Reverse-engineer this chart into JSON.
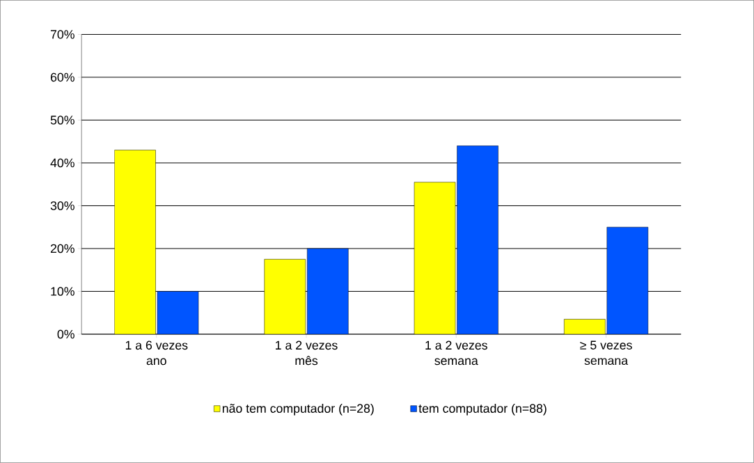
{
  "chart_data": {
    "type": "bar",
    "categories": [
      "1 a 6 vezes\nano",
      "1 a 2 vezes\nmês",
      "1 a 2 vezes\nsemana",
      "≥ 5 vezes\nsemana"
    ],
    "series": [
      {
        "name": "não tem computador  (n=28)",
        "color": "#ffff00",
        "values": [
          43,
          17.5,
          35.5,
          3.5
        ]
      },
      {
        "name": "tem computador  (n=88)",
        "color": "#0055ff",
        "values": [
          10,
          20,
          44,
          25
        ]
      }
    ],
    "ylim": [
      0,
      70
    ],
    "yticks": [
      {
        "value": 0,
        "label": "0%"
      },
      {
        "value": 10,
        "label": "10%"
      },
      {
        "value": 20,
        "label": "20%"
      },
      {
        "value": 30,
        "label": "30%"
      },
      {
        "value": 40,
        "label": "40%"
      },
      {
        "value": 50,
        "label": "50%"
      },
      {
        "value": 60,
        "label": "60%"
      },
      {
        "value": 70,
        "label": "70%"
      }
    ],
    "grid": "y",
    "legend": "bottom"
  }
}
